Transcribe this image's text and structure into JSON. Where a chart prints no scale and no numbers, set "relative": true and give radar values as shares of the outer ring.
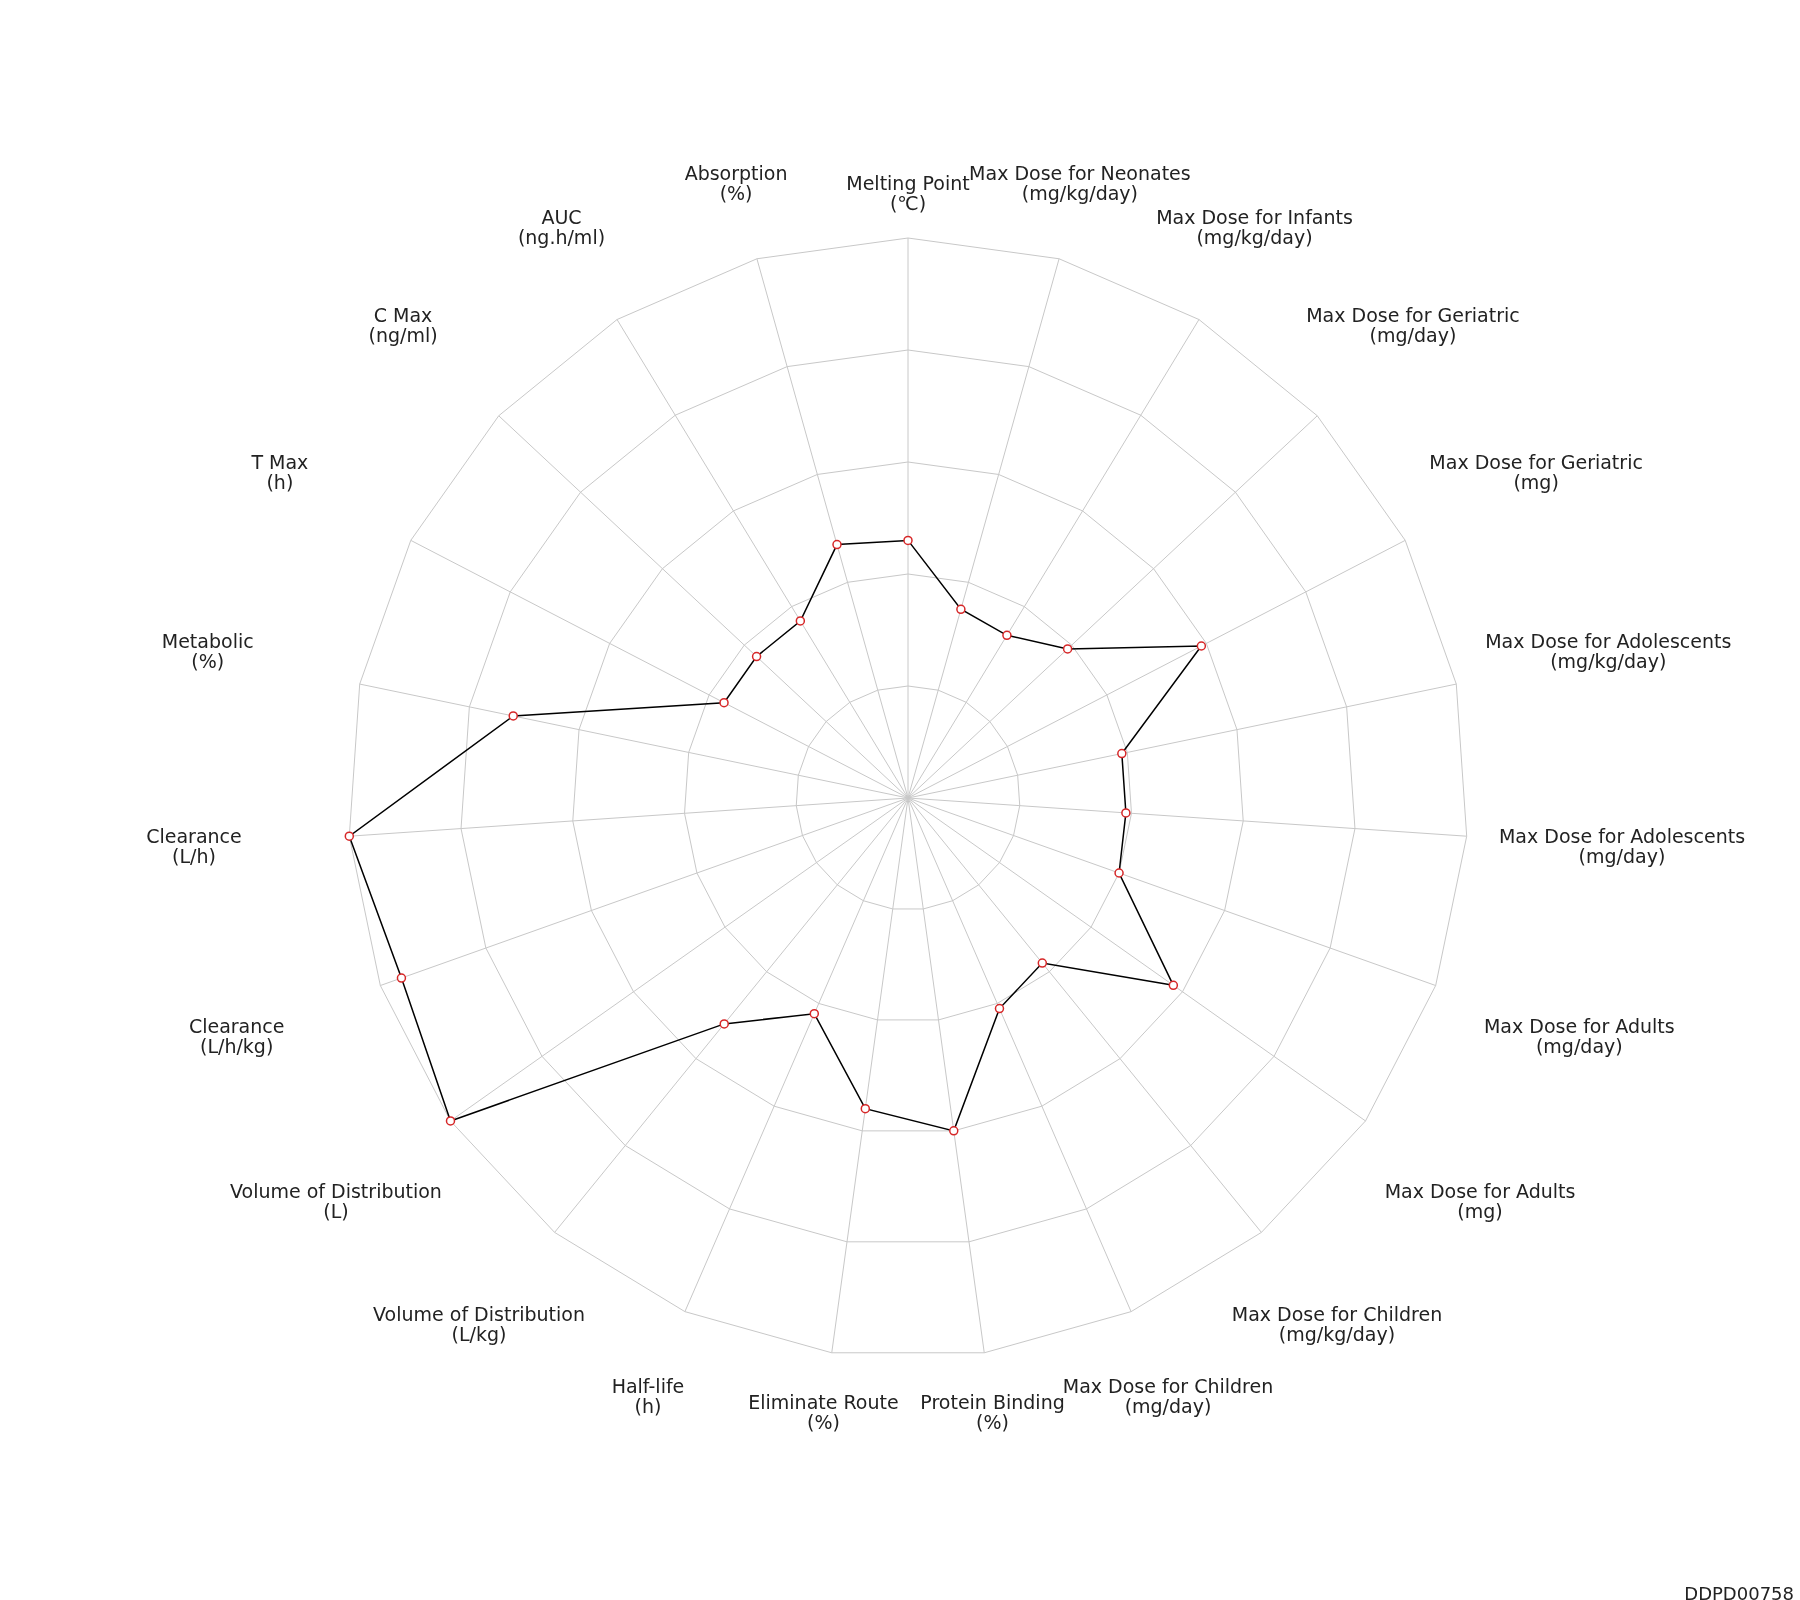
{
  "chart_data": {
    "type": "radar",
    "relative": true,
    "grid": true,
    "marker": "circle",
    "legend": false,
    "categories": [
      "Melting Point\n(℃)",
      "Max Dose for Neonates\n(mg/kg/day)",
      "Max Dose for Infants\n(mg/kg/day)",
      "Max Dose for Geriatric\n(mg/day)",
      "Max Dose for Geriatric\n(mg)",
      "Max Dose for Adolescents\n(mg/kg/day)",
      "Max Dose for Adolescents\n(mg/day)",
      "Max Dose for Adults\n(mg/day)",
      "Max Dose for Adults\n(mg)",
      "Max Dose for Children\n(mg/kg/day)",
      "Max Dose for Children\n(mg/day)",
      "Protein Binding\n(%)",
      "Eliminate Route\n(%)",
      "Half-life\n(h)",
      "Volume of Distribution\n(L/kg)",
      "Volume of Distribution\n(L)",
      "Clearance\n(L/h/kg)",
      "Clearance\n(L/h)",
      "Metabolic\n(%)",
      "T Max\n(h)",
      "C Max\n(ng/ml)",
      "AUC\n(ng.h/ml)",
      "Absorption\n(%)"
    ],
    "series": [
      {
        "color": "#000000",
        "values": [
          0.46,
          0.35,
          0.34,
          0.39,
          0.59,
          0.39,
          0.39,
          0.4,
          0.58,
          0.38,
          0.41,
          0.6,
          0.56,
          0.42,
          0.52,
          1,
          0.96,
          1,
          0.72,
          0.37,
          0.37,
          0.37,
          0.47
        ]
      }
    ],
    "annotations": [
      "DDPD00758"
    ]
  }
}
